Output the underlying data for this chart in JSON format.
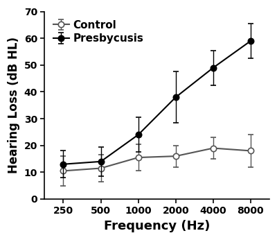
{
  "frequencies": [
    250,
    500,
    1000,
    2000,
    4000,
    8000
  ],
  "control_mean": [
    10.5,
    11.5,
    15.5,
    16.0,
    19.0,
    18.0
  ],
  "control_err": [
    5.5,
    5.0,
    5.0,
    4.0,
    4.0,
    6.0
  ],
  "presbycusis_mean": [
    13.0,
    14.0,
    24.0,
    38.0,
    49.0,
    59.0
  ],
  "presbycusis_err": [
    5.0,
    5.5,
    6.5,
    9.5,
    6.5,
    6.5
  ],
  "control_color": "#555555",
  "presbycusis_color": "#000000",
  "xlabel": "Frequency (Hz)",
  "ylabel": "Hearing Loss (dB HL)",
  "ylim": [
    0,
    70
  ],
  "yticks": [
    0,
    10,
    20,
    30,
    40,
    50,
    60,
    70
  ],
  "legend_labels": [
    "Control",
    "Presbycusis"
  ],
  "xlabel_fontsize": 13,
  "ylabel_fontsize": 12,
  "legend_fontsize": 11,
  "tick_fontsize": 10,
  "background_color": "#ffffff",
  "linewidth": 1.5,
  "markersize": 6,
  "capsize": 3
}
